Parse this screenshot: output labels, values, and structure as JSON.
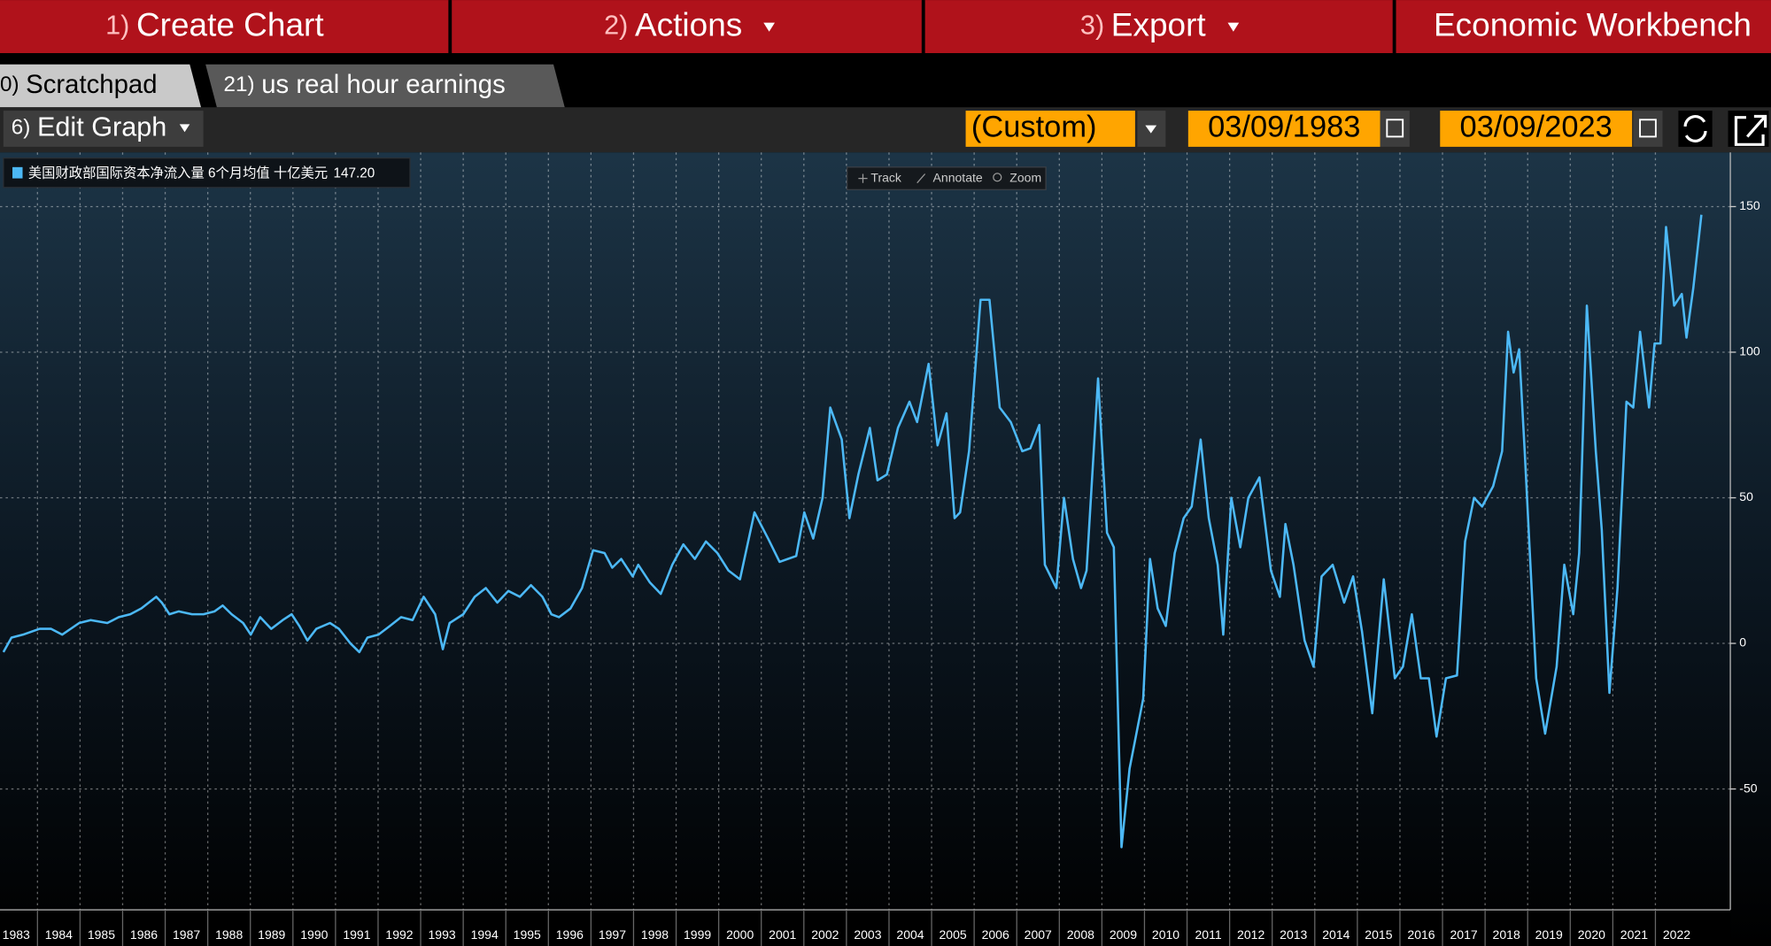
{
  "menu": [
    {
      "num": "1)",
      "label": "Create Chart"
    },
    {
      "num": "2)",
      "label": "Actions"
    },
    {
      "num": "3)",
      "label": "Export"
    },
    {
      "label": "Economic Workbench"
    }
  ],
  "tabs": [
    {
      "num": "0)",
      "label": "Scratchpad"
    },
    {
      "num": "21)",
      "label": "us real hour earnings"
    }
  ],
  "toolbar": {
    "edit_num": "6)",
    "edit_label": "Edit Graph",
    "range": "(Custom)",
    "start_date": "03/09/1983",
    "end_date": "03/09/2023"
  },
  "chart_tools": [
    "Track",
    "Annotate",
    "Zoom"
  ],
  "chart_data": {
    "type": "line",
    "x": [
      1983.2,
      1983.39,
      1983.66,
      1984.05,
      1984.32,
      1984.58,
      1984.98,
      1985.25,
      1985.64,
      1985.91,
      1986.18,
      1986.44,
      1986.79,
      1986.92,
      1987.1,
      1987.32,
      1987.63,
      1987.9,
      1988.16,
      1988.35,
      1988.56,
      1988.83,
      1989.01,
      1989.23,
      1989.49,
      1989.76,
      1989.97,
      1990.15,
      1990.34,
      1990.55,
      1990.87,
      1991.08,
      1991.35,
      1991.56,
      1991.75,
      1992.01,
      1992.28,
      1992.54,
      1992.81,
      1993.07,
      1993.34,
      1993.52,
      1993.68,
      1994.0,
      1994.27,
      1994.53,
      1994.8,
      1995.06,
      1995.33,
      1995.59,
      1995.86,
      1996.07,
      1996.25,
      1996.52,
      1996.79,
      1997.05,
      1997.32,
      1997.5,
      1997.71,
      1997.98,
      1998.11,
      1998.38,
      1998.64,
      1998.91,
      1999.17,
      1999.44,
      1999.7,
      1999.97,
      2000.23,
      2000.5,
      2000.84,
      2001.16,
      2001.43,
      2001.82,
      2002.01,
      2002.22,
      2002.44,
      2002.62,
      2002.89,
      2003.07,
      2003.28,
      2003.55,
      2003.73,
      2003.95,
      2004.21,
      2004.48,
      2004.66,
      2004.93,
      2005.14,
      2005.35,
      2005.54,
      2005.67,
      2005.88,
      2006.15,
      2006.36,
      2006.6,
      2006.86,
      2007.13,
      2007.32,
      2007.53,
      2007.66,
      2007.93,
      2008.11,
      2008.32,
      2008.51,
      2008.64,
      2008.91,
      2009.12,
      2009.28,
      2009.46,
      2009.65,
      2009.97,
      2010.13,
      2010.31,
      2010.5,
      2010.71,
      2010.92,
      2011.11,
      2011.32,
      2011.51,
      2011.72,
      2011.85,
      2012.04,
      2012.25,
      2012.44,
      2012.7,
      2012.97,
      2013.18,
      2013.31,
      2013.5,
      2013.76,
      2013.97,
      2014.16,
      2014.42,
      2014.69,
      2014.9,
      2015.11,
      2015.35,
      2015.62,
      2015.88,
      2016.07,
      2016.28,
      2016.49,
      2016.68,
      2016.86,
      2017.08,
      2017.34,
      2017.53,
      2017.74,
      2017.93,
      2018.19,
      2018.4,
      2018.54,
      2018.67,
      2018.8,
      2018.93,
      2019.2,
      2019.41,
      2019.68,
      2019.86,
      2020.07,
      2020.21,
      2020.39,
      2020.6,
      2020.74,
      2020.92,
      2021.11,
      2021.32,
      2021.48,
      2021.64,
      2021.85,
      2021.98,
      2022.12,
      2022.25,
      2022.44,
      2022.62,
      2022.73,
      2022.89,
      2023.08
    ],
    "series": [
      {
        "name": "美国财政部国际资本净流入量 6个月均值 十亿美元",
        "last_value": "147.20",
        "color": "#4cb8f5",
        "values": [
          -3,
          2,
          3,
          5,
          5,
          3,
          7,
          8,
          7,
          9,
          10,
          12,
          16,
          14,
          10,
          11,
          10,
          10,
          11,
          13,
          10,
          7,
          3,
          9,
          5,
          8,
          10,
          6,
          1,
          5,
          7,
          5,
          0,
          -3,
          2,
          3,
          6,
          9,
          8,
          16,
          10,
          -2,
          7,
          10,
          16,
          19,
          14,
          18,
          16,
          20,
          16,
          10,
          9,
          12,
          19,
          32,
          31,
          26,
          29,
          23,
          27,
          21,
          17,
          27,
          34,
          29,
          35,
          31,
          25,
          22,
          45,
          36,
          28,
          30,
          45,
          36,
          50,
          81,
          70,
          43,
          58,
          74,
          56,
          58,
          74,
          83,
          76,
          96,
          68,
          79,
          43,
          45,
          66,
          118,
          118,
          81,
          76,
          66,
          67,
          75,
          27,
          19,
          50,
          29,
          19,
          25,
          91,
          38,
          33,
          -70,
          -43,
          -19,
          29,
          12,
          6,
          31,
          43,
          47,
          70,
          43,
          27,
          3,
          50,
          33,
          50,
          57,
          25,
          16,
          41,
          27,
          1,
          -8,
          23,
          27,
          14,
          23,
          4,
          -24,
          22,
          -12,
          -8,
          10,
          -12,
          -12,
          -32,
          -12,
          -11,
          35,
          50,
          47,
          54,
          66,
          107,
          93,
          101,
          66,
          -12,
          -31,
          -8,
          27,
          10,
          31,
          116,
          66,
          39,
          -17,
          19,
          83,
          81,
          107,
          81,
          103,
          103,
          143,
          116,
          120,
          105,
          122,
          147.2
        ]
      }
    ],
    "xlim": [
      1983.12,
      2023.76
    ],
    "xticks": [
      1983,
      1984,
      1985,
      1986,
      1987,
      1988,
      1989,
      1990,
      1991,
      1992,
      1993,
      1994,
      1995,
      1996,
      1997,
      1998,
      1999,
      2000,
      2001,
      2002,
      2003,
      2004,
      2005,
      2006,
      2007,
      2008,
      2009,
      2010,
      2011,
      2012,
      2013,
      2014,
      2015,
      2016,
      2017,
      2018,
      2019,
      2020,
      2021,
      2022
    ],
    "ylim": [
      -91.5,
      168.6
    ],
    "yticks": [
      150,
      100,
      50,
      0,
      -50
    ],
    "y_axis_side": "right",
    "grid": true
  }
}
